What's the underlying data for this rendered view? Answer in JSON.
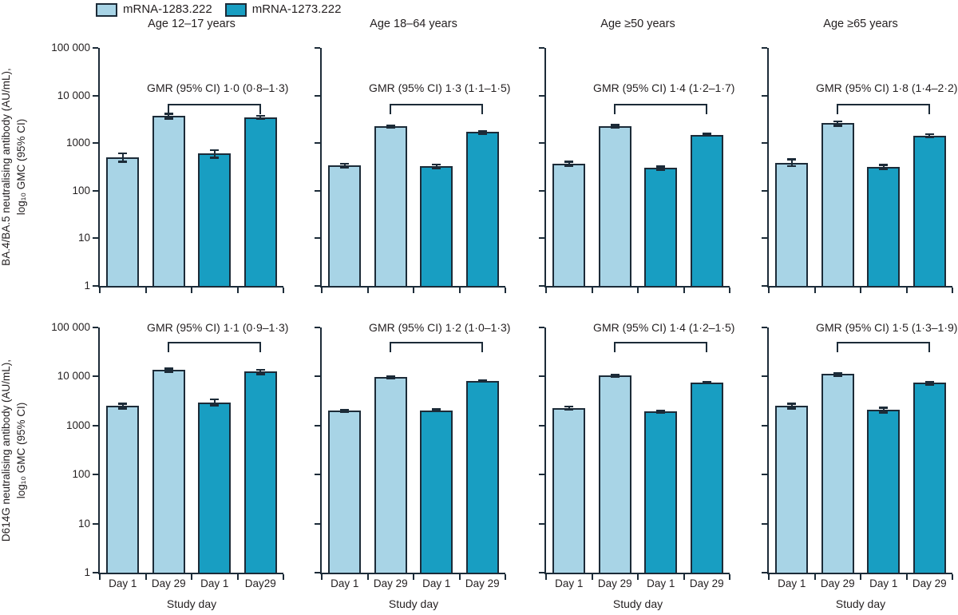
{
  "colors": {
    "background": "#ffffff",
    "axis_and_outline": "#1c2b38",
    "text": "#231f20",
    "series_light": "#a8d4e6",
    "series_teal": "#189ec2"
  },
  "legend": {
    "items": [
      {
        "label": "mRNA-1283.222",
        "color": "#a8d4e6"
      },
      {
        "label": "mRNA-1273.222",
        "color": "#189ec2"
      }
    ]
  },
  "chart_data": {
    "type": "bar",
    "yscale": "log",
    "ylim": [
      1,
      100000
    ],
    "ytick_values": [
      100000,
      10000,
      1000,
      100,
      10,
      1
    ],
    "ytick_labels": [
      "100 000",
      "10 000",
      "1000",
      "100",
      "10",
      "1"
    ],
    "xlabel": "Study day",
    "legend_position": "top",
    "grid": false,
    "series": [
      {
        "name": "mRNA-1283.222",
        "color": "#a8d4e6"
      },
      {
        "name": "mRNA-1273.222",
        "color": "#189ec2"
      }
    ],
    "rows": [
      {
        "ylabel": [
          "BA.4/BA.5 neutralising antibody (AU/mL),",
          "log₁₀ GMC (95% CI)"
        ],
        "show_x_tick_labels": false,
        "show_titles": true,
        "panels": [
          {
            "title": "Age 12–17 years",
            "gmr_annotation": "GMR (95% CI) 1·0 (0·8–1·3)",
            "x_tick_labels": null,
            "bars": [
              {
                "series": "mRNA-1283.222",
                "day": "Day 1",
                "gmc": 500,
                "ci95": [
                  410,
                  610
                ]
              },
              {
                "series": "mRNA-1283.222",
                "day": "Day 29",
                "gmc": 3700,
                "ci95": [
                  3300,
                  4150
                ]
              },
              {
                "series": "mRNA-1273.222",
                "day": "Day 1",
                "gmc": 600,
                "ci95": [
                  500,
                  720
                ]
              },
              {
                "series": "mRNA-1273.222",
                "day": "Day 29",
                "gmc": 3500,
                "ci95": [
                  3250,
                  3800
                ]
              }
            ]
          },
          {
            "title": "Age 18–64 years",
            "gmr_annotation": "GMR (95% CI) 1·3 (1·1–1·5)",
            "x_tick_labels": null,
            "bars": [
              {
                "series": "mRNA-1283.222",
                "day": "Day 1",
                "gmc": 340,
                "ci95": [
                  310,
                  375
                ]
              },
              {
                "series": "mRNA-1283.222",
                "day": "Day 29",
                "gmc": 2250,
                "ci95": [
                  2100,
                  2400
                ]
              },
              {
                "series": "mRNA-1273.222",
                "day": "Day 1",
                "gmc": 330,
                "ci95": [
                  300,
                  360
                ]
              },
              {
                "series": "mRNA-1273.222",
                "day": "Day 29",
                "gmc": 1700,
                "ci95": [
                  1600,
                  1800
                ]
              }
            ]
          },
          {
            "title": "Age ≥50 years",
            "gmr_annotation": "GMR (95% CI) 1·4 (1·2–1·7)",
            "x_tick_labels": null,
            "bars": [
              {
                "series": "mRNA-1283.222",
                "day": "Day 1",
                "gmc": 370,
                "ci95": [
                  330,
                  410
                ]
              },
              {
                "series": "mRNA-1283.222",
                "day": "Day 29",
                "gmc": 2250,
                "ci95": [
                  2100,
                  2450
                ]
              },
              {
                "series": "mRNA-1273.222",
                "day": "Day 1",
                "gmc": 300,
                "ci95": [
                  280,
                  325
                ]
              },
              {
                "series": "mRNA-1273.222",
                "day": "Day 29",
                "gmc": 1500,
                "ci95": [
                  1430,
                  1580
                ]
              }
            ]
          },
          {
            "title": "Age ≥65 years",
            "gmr_annotation": "GMR (95% CI) 1·8 (1·4–2·2)",
            "x_tick_labels": null,
            "bars": [
              {
                "series": "mRNA-1283.222",
                "day": "Day 1",
                "gmc": 390,
                "ci95": [
                  330,
                  460
                ]
              },
              {
                "series": "mRNA-1283.222",
                "day": "Day 29",
                "gmc": 2600,
                "ci95": [
                  2350,
                  2900
                ]
              },
              {
                "series": "mRNA-1273.222",
                "day": "Day 1",
                "gmc": 320,
                "ci95": [
                  290,
                  355
                ]
              },
              {
                "series": "mRNA-1273.222",
                "day": "Day 29",
                "gmc": 1450,
                "ci95": [
                  1350,
                  1550
                ]
              }
            ]
          }
        ]
      },
      {
        "ylabel": [
          "D614G neutralising antibody (AU/mL),",
          "log₁₀ GMC (95% CI)"
        ],
        "show_x_tick_labels": true,
        "show_titles": false,
        "panels": [
          {
            "title": "Age 12–17 years",
            "gmr_annotation": "GMR (95% CI) 1·1 (0·9–1·3)",
            "x_tick_labels": [
              "Day 1",
              "Day 29",
              "Day 1",
              "Day29"
            ],
            "bars": [
              {
                "series": "mRNA-1283.222",
                "day": "Day 1",
                "gmc": 2500,
                "ci95": [
                  2250,
                  2800
                ]
              },
              {
                "series": "mRNA-1283.222",
                "day": "Day 29",
                "gmc": 13500,
                "ci95": [
                  12400,
                  14700
                ]
              },
              {
                "series": "mRNA-1273.222",
                "day": "Day 1",
                "gmc": 3000,
                "ci95": [
                  2600,
                  3450
                ]
              },
              {
                "series": "mRNA-1273.222",
                "day": "Day 29",
                "gmc": 12500,
                "ci95": [
                  11300,
                  13800
                ]
              }
            ]
          },
          {
            "title": "Age 18–64 years",
            "gmr_annotation": "GMR (95% CI) 1·2 (1·0–1·3)",
            "x_tick_labels": [
              "Day 1",
              "Day 29",
              "Day 1",
              "Day 29"
            ],
            "bars": [
              {
                "series": "mRNA-1283.222",
                "day": "Day 1",
                "gmc": 2000,
                "ci95": [
                  1900,
                  2100
                ]
              },
              {
                "series": "mRNA-1283.222",
                "day": "Day 29",
                "gmc": 9700,
                "ci95": [
                  9300,
                  10100
                ]
              },
              {
                "series": "mRNA-1273.222",
                "day": "Day 1",
                "gmc": 2050,
                "ci95": [
                  1950,
                  2150
                ]
              },
              {
                "series": "mRNA-1273.222",
                "day": "Day 29",
                "gmc": 8200,
                "ci95": [
                  7950,
                  8450
                ]
              }
            ]
          },
          {
            "title": "Age ≥50 years",
            "gmr_annotation": "GMR (95% CI) 1·4 (1·2–1·5)",
            "x_tick_labels": [
              "Day 1",
              "Day 29",
              "Day 1",
              "Day 29"
            ],
            "bars": [
              {
                "series": "mRNA-1283.222",
                "day": "Day 1",
                "gmc": 2300,
                "ci95": [
                  2150,
                  2450
                ]
              },
              {
                "series": "mRNA-1283.222",
                "day": "Day 29",
                "gmc": 10400,
                "ci95": [
                  10000,
                  10800
                ]
              },
              {
                "series": "mRNA-1273.222",
                "day": "Day 1",
                "gmc": 1950,
                "ci95": [
                  1850,
                  2050
                ]
              },
              {
                "series": "mRNA-1273.222",
                "day": "Day 29",
                "gmc": 7600,
                "ci95": [
                  7350,
                  7850
                ]
              }
            ]
          },
          {
            "title": "Age ≥65 years",
            "gmr_annotation": "GMR (95% CI) 1·5 (1·3–1·9)",
            "x_tick_labels": [
              "Day 1",
              "Day 29",
              "Day 1",
              "Day 29"
            ],
            "bars": [
              {
                "series": "mRNA-1283.222",
                "day": "Day 1",
                "gmc": 2500,
                "ci95": [
                  2250,
                  2800
                ]
              },
              {
                "series": "mRNA-1283.222",
                "day": "Day 29",
                "gmc": 11200,
                "ci95": [
                  10400,
                  12000
                ]
              },
              {
                "series": "mRNA-1273.222",
                "day": "Day 1",
                "gmc": 2100,
                "ci95": [
                  1870,
                  2350
                ]
              },
              {
                "series": "mRNA-1273.222",
                "day": "Day 29",
                "gmc": 7400,
                "ci95": [
                  6950,
                  7900
                ]
              }
            ]
          }
        ]
      }
    ]
  }
}
